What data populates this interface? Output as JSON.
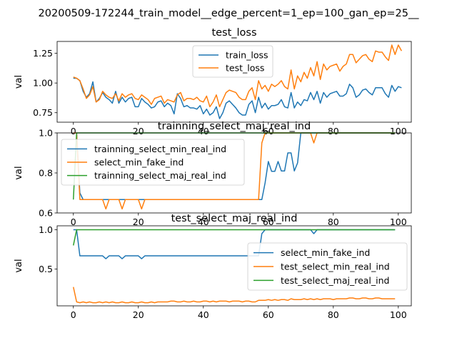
{
  "figure": {
    "suptitle": "20200509-172244_train_model__edge_percent=1_ep=100_gan_ep=25__"
  },
  "chart_data": [
    {
      "type": "line",
      "title": "test_loss",
      "xlabel": "",
      "ylabel": "val",
      "xlim": [
        -5,
        104
      ],
      "ylim": [
        0.67,
        1.35
      ],
      "xticks": [
        0,
        20,
        40,
        60,
        80,
        100
      ],
      "yticks": [
        0.75,
        1.0,
        1.25
      ],
      "ytick_labels": [
        "0.75",
        "1.00",
        "1.25"
      ],
      "legend_loc": "upper-center",
      "series": [
        {
          "name": "train_loss",
          "color": "#1f77b4",
          "values": [
            1.04,
            1.04,
            1.02,
            0.93,
            0.88,
            0.91,
            1.01,
            0.84,
            0.87,
            0.92,
            0.88,
            0.86,
            0.83,
            0.93,
            0.83,
            0.88,
            0.84,
            0.87,
            0.88,
            0.8,
            0.8,
            0.87,
            0.84,
            0.82,
            0.79,
            0.8,
            0.84,
            0.85,
            0.8,
            0.83,
            0.81,
            0.74,
            0.91,
            0.87,
            0.8,
            0.81,
            0.79,
            0.79,
            0.78,
            0.81,
            0.74,
            0.78,
            0.73,
            0.75,
            0.8,
            0.7,
            0.75,
            0.83,
            0.85,
            0.82,
            0.79,
            0.75,
            0.73,
            0.73,
            0.82,
            0.85,
            0.75,
            0.88,
            0.79,
            0.83,
            0.78,
            0.81,
            0.81,
            0.82,
            0.86,
            0.8,
            0.79,
            0.92,
            0.79,
            0.84,
            0.81,
            0.86,
            0.85,
            0.92,
            0.86,
            0.93,
            0.83,
            0.92,
            0.88,
            0.91,
            0.92,
            0.93,
            0.89,
            0.89,
            0.91,
            0.99,
            0.96,
            0.88,
            0.9,
            0.94,
            0.95,
            0.92,
            0.9,
            0.96,
            0.96,
            0.96,
            0.91,
            0.88,
            0.98,
            0.93,
            0.97,
            0.96
          ]
        },
        {
          "name": "test_loss",
          "color": "#ff7f0e",
          "values": [
            1.05,
            1.04,
            1.02,
            0.95,
            0.87,
            0.9,
            0.97,
            0.84,
            0.86,
            0.93,
            0.9,
            0.88,
            0.87,
            0.91,
            0.85,
            0.91,
            0.88,
            0.9,
            0.91,
            0.87,
            0.86,
            0.9,
            0.88,
            0.86,
            0.82,
            0.87,
            0.88,
            0.89,
            0.83,
            0.86,
            0.85,
            0.84,
            0.9,
            0.92,
            0.85,
            0.87,
            0.87,
            0.86,
            0.88,
            0.85,
            0.84,
            0.89,
            0.8,
            0.84,
            0.9,
            0.8,
            0.86,
            0.92,
            0.94,
            0.93,
            0.92,
            0.88,
            0.86,
            0.86,
            0.93,
            0.96,
            0.86,
            1.02,
            0.95,
            0.98,
            0.93,
            0.99,
            0.97,
            0.99,
            1.02,
            0.97,
            0.95,
            1.11,
            0.95,
            1.06,
            1.01,
            1.09,
            1.04,
            1.13,
            1.06,
            1.18,
            1.03,
            1.16,
            1.11,
            1.14,
            1.15,
            1.16,
            1.1,
            1.14,
            1.16,
            1.24,
            1.24,
            1.17,
            1.2,
            1.23,
            1.24,
            1.2,
            1.18,
            1.27,
            1.26,
            1.26,
            1.22,
            1.19,
            1.32,
            1.24,
            1.32,
            1.27
          ]
        }
      ]
    },
    {
      "type": "line",
      "title": "trainning_select_maj_real_ind",
      "xlabel": "",
      "ylabel": "val",
      "xlim": [
        -5,
        104
      ],
      "ylim": [
        0.6,
        1.0
      ],
      "xticks": [
        0,
        20,
        40,
        60,
        80,
        100
      ],
      "yticks": [
        0.6,
        0.8,
        1.0
      ],
      "ytick_labels": [
        "0.6",
        "0.8",
        "1.0"
      ],
      "legend_loc": "upper-left",
      "series": [
        {
          "name": "trainning_select_min_real_ind",
          "color": "#1f77b4",
          "values": [
            1.0,
            1.0,
            0.7,
            0.667,
            0.667,
            0.667,
            0.667,
            0.667,
            0.667,
            0.667,
            0.667,
            0.667,
            0.667,
            0.667,
            0.667,
            0.667,
            0.667,
            0.667,
            0.667,
            0.667,
            0.667,
            0.667,
            0.667,
            0.667,
            0.667,
            0.667,
            0.667,
            0.667,
            0.667,
            0.667,
            0.667,
            0.667,
            0.667,
            0.667,
            0.667,
            0.667,
            0.667,
            0.667,
            0.667,
            0.667,
            0.667,
            0.667,
            0.667,
            0.667,
            0.667,
            0.667,
            0.667,
            0.667,
            0.667,
            0.667,
            0.667,
            0.667,
            0.667,
            0.667,
            0.667,
            0.667,
            0.667,
            0.667,
            0.667,
            0.75,
            0.857,
            0.808,
            0.808,
            0.857,
            0.81,
            0.81,
            0.9,
            0.9,
            0.81,
            0.85,
            1.0,
            1.0,
            1.0,
            1.0,
            1.0,
            1.0,
            1.0,
            1.0,
            1.0,
            1.0,
            1.0,
            1.0,
            1.0,
            1.0,
            1.0,
            1.0,
            1.0,
            1.0,
            1.0,
            1.0,
            1.0,
            1.0,
            1.0,
            1.0,
            1.0,
            1.0,
            1.0,
            1.0,
            1.0,
            1.0
          ]
        },
        {
          "name": "select_min_fake_ind",
          "color": "#ff7f0e",
          "values": [
            1.0,
            1.0,
            0.667,
            0.667,
            0.667,
            0.667,
            0.667,
            0.667,
            0.667,
            0.667,
            0.62,
            0.667,
            0.667,
            0.667,
            0.667,
            0.62,
            0.667,
            0.667,
            0.667,
            0.667,
            0.667,
            0.62,
            0.667,
            0.667,
            0.667,
            0.667,
            0.667,
            0.667,
            0.667,
            0.667,
            0.667,
            0.667,
            0.667,
            0.667,
            0.667,
            0.667,
            0.667,
            0.667,
            0.667,
            0.667,
            0.667,
            0.667,
            0.667,
            0.667,
            0.667,
            0.667,
            0.667,
            0.667,
            0.667,
            0.667,
            0.667,
            0.667,
            0.667,
            0.667,
            0.667,
            0.667,
            0.667,
            0.667,
            0.95,
            1.0,
            1.0,
            1.0,
            1.0,
            1.0,
            1.0,
            1.0,
            1.0,
            1.0,
            1.0,
            1.0,
            1.0,
            1.0,
            1.0,
            1.0,
            0.95,
            1.0,
            1.0,
            1.0,
            1.0,
            1.0,
            1.0,
            1.0,
            1.0,
            1.0,
            1.0,
            1.0,
            1.0,
            1.0,
            1.0,
            1.0,
            1.0,
            1.0,
            1.0,
            1.0,
            1.0,
            1.0,
            1.0,
            1.0,
            1.0,
            1.0
          ]
        },
        {
          "name": "trainning_select_maj_real_ind",
          "color": "#2ca02c",
          "values": [
            0.667,
            1.0,
            1.0,
            1.0,
            1.0,
            1.0,
            1.0,
            1.0,
            1.0,
            1.0,
            1.0,
            1.0,
            1.0,
            1.0,
            1.0,
            1.0,
            1.0,
            1.0,
            1.0,
            1.0,
            1.0,
            1.0,
            1.0,
            1.0,
            1.0,
            1.0,
            1.0,
            1.0,
            1.0,
            1.0,
            1.0,
            1.0,
            1.0,
            1.0,
            1.0,
            1.0,
            1.0,
            1.0,
            1.0,
            1.0,
            1.0,
            1.0,
            1.0,
            1.0,
            1.0,
            1.0,
            1.0,
            1.0,
            1.0,
            1.0,
            1.0,
            1.0,
            1.0,
            1.0,
            1.0,
            1.0,
            1.0,
            1.0,
            1.0,
            1.0,
            1.0,
            1.0,
            1.0,
            1.0,
            1.0,
            1.0,
            1.0,
            1.0,
            1.0,
            1.0,
            1.0,
            1.0,
            1.0,
            1.0,
            1.0,
            1.0,
            1.0,
            1.0,
            1.0,
            1.0,
            1.0,
            1.0,
            1.0,
            1.0,
            1.0,
            1.0,
            1.0,
            1.0,
            1.0,
            1.0,
            1.0,
            1.0,
            1.0,
            1.0,
            1.0,
            1.0,
            1.0,
            1.0,
            1.0,
            1.0
          ]
        }
      ]
    },
    {
      "type": "line",
      "title": "test_select_maj_real_ind",
      "xlabel": "",
      "ylabel": "val",
      "xlim": [
        -5,
        104
      ],
      "ylim": [
        0.03,
        1.05
      ],
      "xticks": [
        0,
        20,
        40,
        60,
        80,
        100
      ],
      "yticks": [
        0.5,
        1.0
      ],
      "ytick_labels": [
        "0.5",
        "1.0"
      ],
      "legend_loc": "center-right",
      "series": [
        {
          "name": "select_min_fake_ind",
          "color": "#1f77b4",
          "values": [
            1.0,
            1.0,
            0.667,
            0.667,
            0.667,
            0.667,
            0.667,
            0.667,
            0.667,
            0.667,
            0.63,
            0.667,
            0.667,
            0.667,
            0.667,
            0.63,
            0.667,
            0.667,
            0.667,
            0.667,
            0.667,
            0.63,
            0.667,
            0.667,
            0.667,
            0.667,
            0.667,
            0.667,
            0.667,
            0.667,
            0.667,
            0.667,
            0.667,
            0.667,
            0.667,
            0.667,
            0.667,
            0.667,
            0.667,
            0.667,
            0.667,
            0.667,
            0.667,
            0.667,
            0.667,
            0.667,
            0.667,
            0.667,
            0.667,
            0.667,
            0.667,
            0.667,
            0.667,
            0.667,
            0.667,
            0.667,
            0.667,
            0.667,
            0.95,
            1.0,
            1.0,
            1.0,
            1.0,
            1.0,
            1.0,
            1.0,
            1.0,
            1.0,
            1.0,
            1.0,
            1.0,
            1.0,
            1.0,
            1.0,
            0.95,
            1.0,
            1.0,
            1.0,
            1.0,
            1.0,
            1.0,
            1.0,
            1.0,
            1.0,
            1.0,
            1.0,
            1.0,
            1.0,
            1.0,
            1.0,
            1.0,
            1.0,
            1.0,
            1.0,
            1.0,
            1.0,
            1.0,
            1.0,
            1.0,
            1.0
          ]
        },
        {
          "name": "test_select_min_real_ind",
          "color": "#ff7f0e",
          "values": [
            0.27,
            0.08,
            0.07,
            0.08,
            0.07,
            0.08,
            0.07,
            0.07,
            0.08,
            0.07,
            0.08,
            0.07,
            0.08,
            0.07,
            0.07,
            0.08,
            0.07,
            0.07,
            0.08,
            0.07,
            0.07,
            0.08,
            0.07,
            0.07,
            0.08,
            0.07,
            0.08,
            0.08,
            0.08,
            0.08,
            0.09,
            0.09,
            0.08,
            0.08,
            0.09,
            0.08,
            0.08,
            0.09,
            0.08,
            0.08,
            0.09,
            0.09,
            0.08,
            0.09,
            0.08,
            0.09,
            0.09,
            0.09,
            0.08,
            0.09,
            0.09,
            0.09,
            0.08,
            0.09,
            0.09,
            0.08,
            0.08,
            0.1,
            0.1,
            0.1,
            0.11,
            0.1,
            0.11,
            0.1,
            0.11,
            0.11,
            0.1,
            0.12,
            0.11,
            0.11,
            0.11,
            0.12,
            0.11,
            0.12,
            0.11,
            0.12,
            0.11,
            0.12,
            0.12,
            0.12,
            0.11,
            0.12,
            0.12,
            0.12,
            0.12,
            0.13,
            0.13,
            0.12,
            0.12,
            0.13,
            0.13,
            0.12,
            0.12,
            0.13,
            0.13,
            0.12,
            0.12,
            0.12,
            0.12,
            0.12
          ]
        },
        {
          "name": "test_select_maj_real_ind",
          "color": "#2ca02c",
          "values": [
            0.8,
            1.0,
            1.0,
            1.0,
            1.0,
            1.0,
            1.0,
            1.0,
            1.0,
            1.0,
            1.0,
            1.0,
            1.0,
            1.0,
            1.0,
            1.0,
            1.0,
            1.0,
            1.0,
            1.0,
            1.0,
            1.0,
            1.0,
            1.0,
            1.0,
            1.0,
            1.0,
            1.0,
            1.0,
            1.0,
            1.0,
            1.0,
            1.0,
            1.0,
            1.0,
            1.0,
            1.0,
            1.0,
            1.0,
            1.0,
            1.0,
            1.0,
            1.0,
            1.0,
            1.0,
            1.0,
            1.0,
            1.0,
            1.0,
            1.0,
            1.0,
            1.0,
            1.0,
            1.0,
            1.0,
            1.0,
            1.0,
            1.0,
            1.0,
            1.0,
            1.0,
            1.0,
            1.0,
            1.0,
            1.0,
            1.0,
            1.0,
            1.0,
            1.0,
            1.0,
            1.0,
            1.0,
            1.0,
            1.0,
            1.0,
            1.0,
            1.0,
            1.0,
            1.0,
            1.0,
            1.0,
            1.0,
            1.0,
            1.0,
            1.0,
            1.0,
            1.0,
            1.0,
            1.0,
            1.0,
            1.0,
            1.0,
            1.0,
            1.0,
            1.0,
            1.0,
            1.0,
            1.0,
            1.0,
            1.0
          ]
        }
      ]
    }
  ]
}
